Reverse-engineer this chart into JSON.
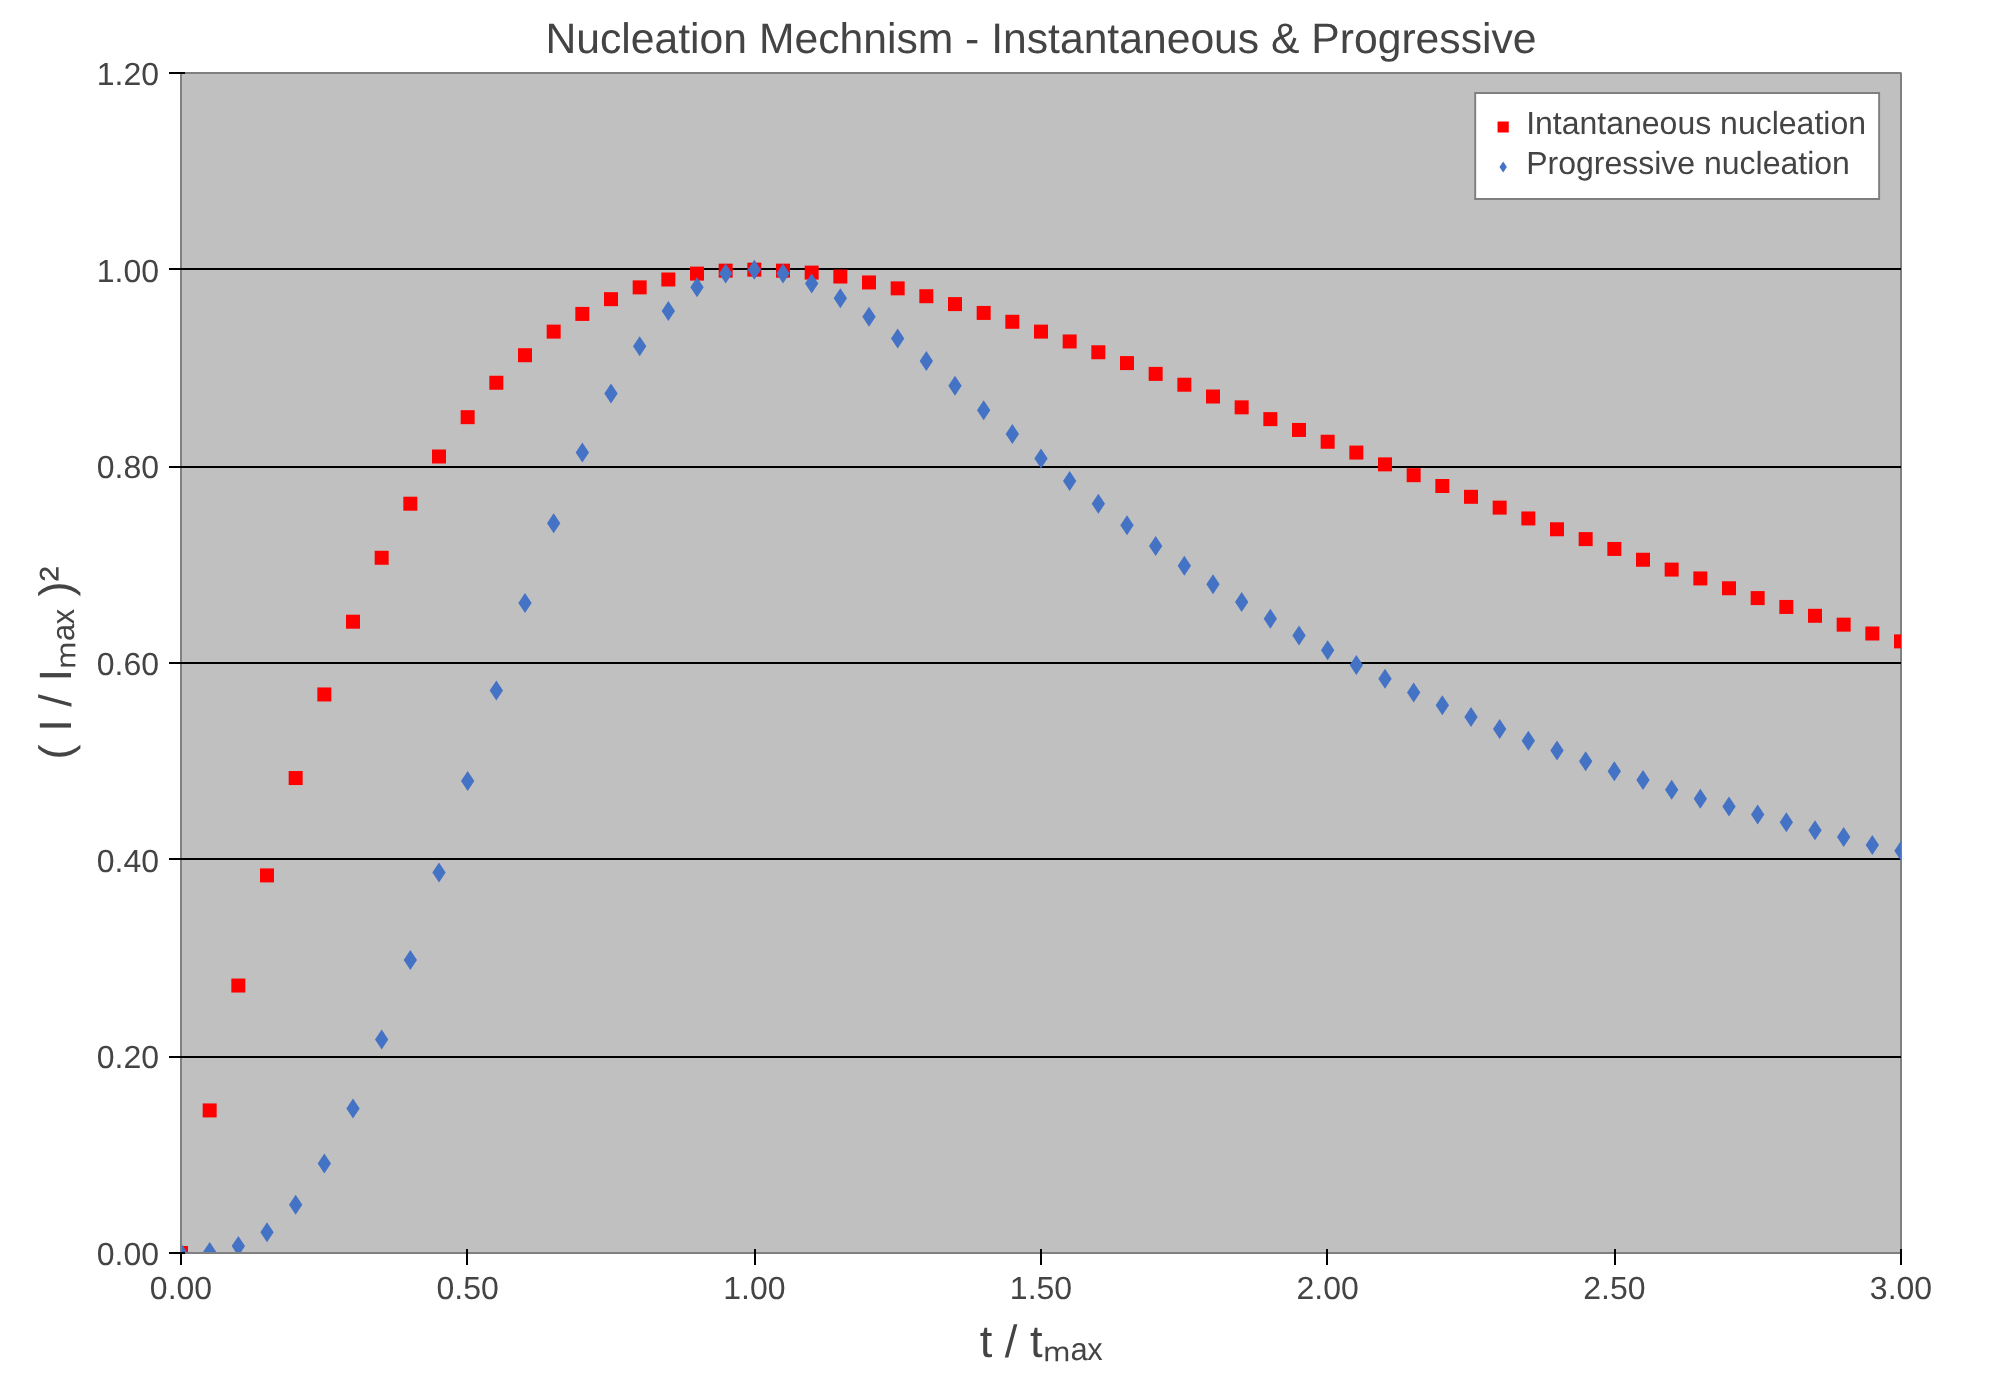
{
  "chart_data": {
    "type": "scatter",
    "title": "Nucleation Mechnism - Instantaneous & Progressive",
    "xlabel": "t / tₘₐₓ",
    "ylabel": "( I / Iₘₐₓ )²",
    "x": [
      0,
      0.05,
      0.1,
      0.15,
      0.2,
      0.25,
      0.3,
      0.35,
      0.4,
      0.45,
      0.5,
      0.55,
      0.6,
      0.65,
      0.7,
      0.75,
      0.8,
      0.85,
      0.9,
      0.95,
      1,
      1.05,
      1.1,
      1.15,
      1.2,
      1.25,
      1.3,
      1.35,
      1.4,
      1.45,
      1.5,
      1.55,
      1.6,
      1.65,
      1.7,
      1.75,
      1.8,
      1.85,
      1.9,
      1.95,
      2,
      2.05,
      2.1,
      2.15,
      2.2,
      2.25,
      2.3,
      2.35,
      2.4,
      2.45,
      2.5,
      2.55,
      2.6,
      2.65,
      2.7,
      2.75,
      2.8,
      2.85,
      2.9,
      2.95,
      3
    ],
    "series": [
      {
        "name": "Intantaneous nucleation",
        "color": "#ff0000",
        "marker": "square",
        "values": [
          0,
          0.145,
          0.272,
          0.384,
          0.483,
          0.568,
          0.642,
          0.707,
          0.762,
          0.81,
          0.85,
          0.885,
          0.913,
          0.937,
          0.955,
          0.97,
          0.982,
          0.99,
          0.996,
          0.999,
          1.0,
          0.999,
          0.997,
          0.993,
          0.987,
          0.981,
          0.973,
          0.965,
          0.956,
          0.947,
          0.937,
          0.927,
          0.916,
          0.905,
          0.894,
          0.883,
          0.871,
          0.86,
          0.848,
          0.837,
          0.825,
          0.814,
          0.802,
          0.791,
          0.78,
          0.769,
          0.758,
          0.747,
          0.736,
          0.726,
          0.716,
          0.705,
          0.695,
          0.686,
          0.676,
          0.666,
          0.657,
          0.648,
          0.639,
          0.63,
          0.622
        ]
      },
      {
        "name": "Progressive nucleation",
        "color": "#4472c4",
        "marker": "diamond",
        "values": [
          0,
          0.001,
          0.007,
          0.021,
          0.049,
          0.091,
          0.147,
          0.217,
          0.298,
          0.387,
          0.48,
          0.572,
          0.661,
          0.742,
          0.814,
          0.874,
          0.922,
          0.958,
          0.982,
          0.996,
          1.0,
          0.996,
          0.986,
          0.971,
          0.952,
          0.93,
          0.907,
          0.882,
          0.857,
          0.833,
          0.808,
          0.785,
          0.762,
          0.74,
          0.719,
          0.699,
          0.68,
          0.662,
          0.645,
          0.628,
          0.613,
          0.598,
          0.584,
          0.57,
          0.557,
          0.545,
          0.533,
          0.521,
          0.511,
          0.5,
          0.49,
          0.481,
          0.471,
          0.462,
          0.454,
          0.446,
          0.438,
          0.43,
          0.423,
          0.415,
          0.409
        ]
      }
    ],
    "xlim": [
      0,
      3
    ],
    "xticks": [
      {
        "value": 0,
        "label": "0.00"
      },
      {
        "value": 0.5,
        "label": "0.50"
      },
      {
        "value": 1,
        "label": "1.00"
      },
      {
        "value": 1.5,
        "label": "1.50"
      },
      {
        "value": 2,
        "label": "2.00"
      },
      {
        "value": 2.5,
        "label": "2.50"
      },
      {
        "value": 3,
        "label": "3.00"
      }
    ],
    "ylim": [
      0,
      1.2
    ],
    "yticks": [
      {
        "value": 0,
        "label": "0.00"
      },
      {
        "value": 0.2,
        "label": "0.20"
      },
      {
        "value": 0.4,
        "label": "0.40"
      },
      {
        "value": 0.6,
        "label": "0.60"
      },
      {
        "value": 0.8,
        "label": "0.80"
      },
      {
        "value": 1,
        "label": "1.00"
      },
      {
        "value": 1.2,
        "label": "1.20"
      }
    ],
    "grid": "y",
    "legend": "top right"
  }
}
